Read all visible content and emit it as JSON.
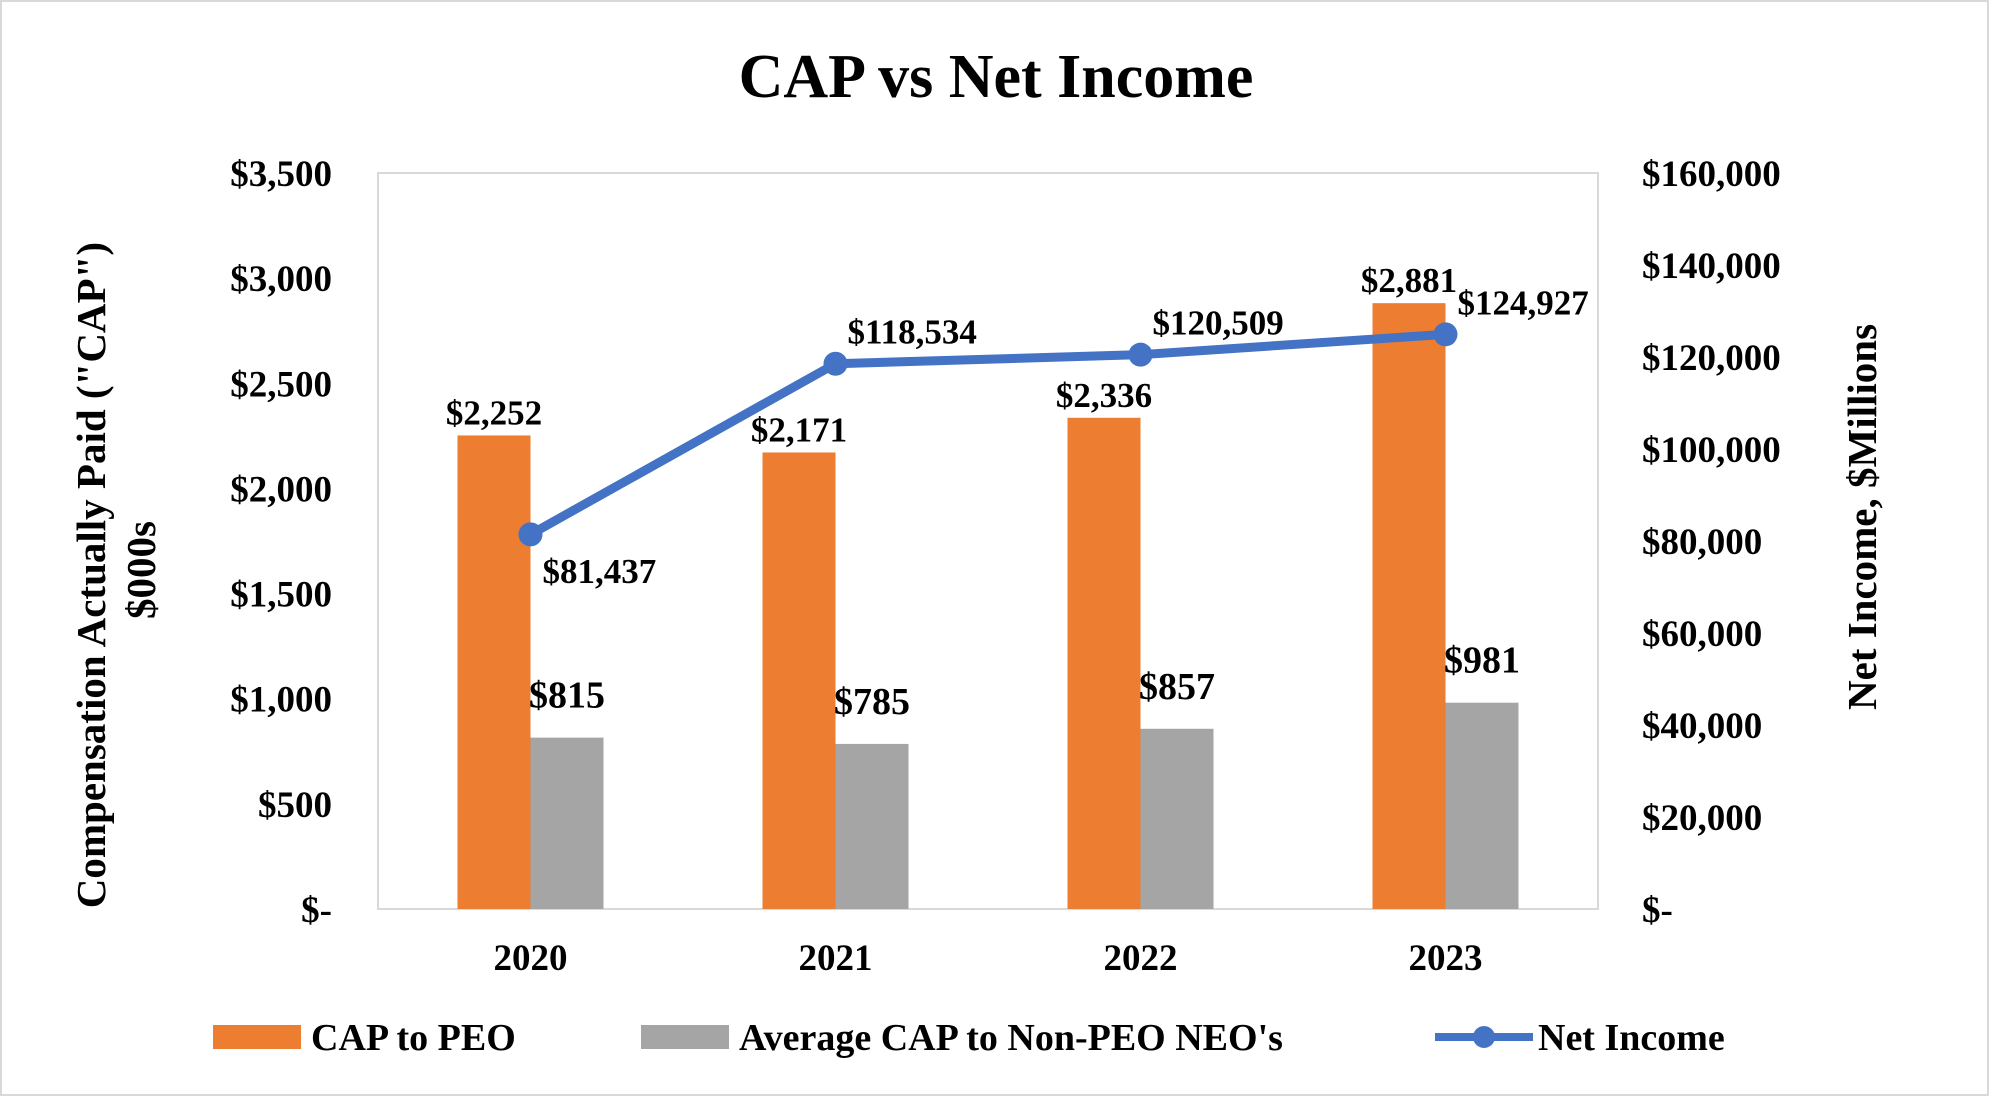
{
  "chart_data": {
    "type": "bar",
    "title": "CAP vs Net Income",
    "xlabel": "",
    "ylabel": "Compensation Actually Paid (\"CAP\")",
    "ylabel_line2": "$000s",
    "y2label": "Net Income, $Millions",
    "categories": [
      "2020",
      "2021",
      "2022",
      "2023"
    ],
    "ylim": [
      0,
      3500
    ],
    "y2lim": [
      0,
      160000
    ],
    "yticks": [
      0,
      500,
      1000,
      1500,
      2000,
      2500,
      3000,
      3500
    ],
    "ytick_labels": [
      "$-",
      "$500",
      "$1,000",
      "$1,500",
      "$2,000",
      "$2,500",
      "$3,000",
      "$3,500"
    ],
    "y2ticks": [
      0,
      20000,
      40000,
      60000,
      80000,
      100000,
      120000,
      140000,
      160000
    ],
    "y2tick_labels": [
      "$-",
      "$20,000",
      "$40,000",
      "$60,000",
      "$80,000",
      "$100,000",
      "$120,000",
      "$140,000",
      "$160,000"
    ],
    "grid": false,
    "legend_position": "bottom",
    "series": [
      {
        "name": "CAP to PEO",
        "type": "bar",
        "axis": "left",
        "color": "#ED7D31",
        "values": [
          2252,
          2171,
          2336,
          2881
        ],
        "labels": [
          "$2,252",
          "$2,171",
          "$2,336",
          "$2,881"
        ]
      },
      {
        "name": "Average CAP to Non-PEO NEO's",
        "type": "bar",
        "axis": "left",
        "color": "#A5A5A5",
        "values": [
          815,
          785,
          857,
          981
        ],
        "labels": [
          "$815",
          "$785",
          "$857",
          "$981"
        ]
      },
      {
        "name": "Net Income",
        "type": "line",
        "axis": "right",
        "color": "#4472C4",
        "values": [
          81437,
          118534,
          120509,
          124927
        ],
        "labels": [
          "$81,437",
          "$118,534",
          "$120,509",
          "$124,927"
        ]
      }
    ]
  }
}
